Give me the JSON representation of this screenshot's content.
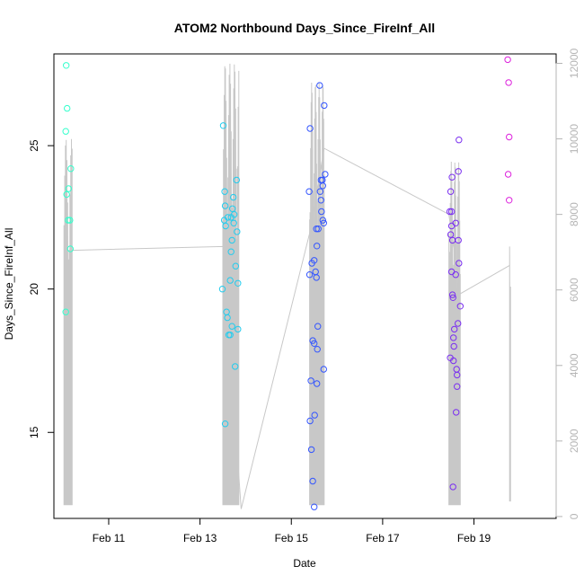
{
  "chart_data": {
    "type": "scatter",
    "title": "ATOM2 Northbound Days_Since_FireInf_All",
    "xlabel": "Date",
    "ylabel": "Days_Since_FireInf_All",
    "x_unit": "day of February",
    "x_ticks": [
      {
        "value": 11,
        "label": "Feb 11"
      },
      {
        "value": 13,
        "label": "Feb 13"
      },
      {
        "value": 15,
        "label": "Feb 15"
      },
      {
        "value": 17,
        "label": "Feb 17"
      },
      {
        "value": 19,
        "label": "Feb 19"
      }
    ],
    "xlim": [
      9.8,
      20.8
    ],
    "ylim": [
      12.0,
      28.2
    ],
    "y_ticks": [
      15,
      20,
      25
    ],
    "y2lim": [
      -50,
      12250
    ],
    "y2_ticks": [
      0,
      2000,
      4000,
      6000,
      8000,
      10000,
      12000
    ],
    "y2_line_color": "#c8c8c8",
    "grid": false,
    "legend": "none",
    "points": [
      {
        "x": 10.07,
        "y": 27.8,
        "color": "#33ffcc"
      },
      {
        "x": 10.09,
        "y": 26.3,
        "color": "#33ffcc"
      },
      {
        "x": 10.06,
        "y": 25.5,
        "color": "#33ffcc"
      },
      {
        "x": 10.17,
        "y": 24.2,
        "color": "#33ffcc"
      },
      {
        "x": 10.12,
        "y": 23.5,
        "color": "#33ffcc"
      },
      {
        "x": 10.08,
        "y": 23.3,
        "color": "#33ffcc"
      },
      {
        "x": 10.11,
        "y": 22.4,
        "color": "#33ffcc"
      },
      {
        "x": 10.15,
        "y": 22.4,
        "color": "#33ffcc"
      },
      {
        "x": 10.16,
        "y": 21.4,
        "color": "#33ffcc"
      },
      {
        "x": 10.06,
        "y": 19.2,
        "color": "#33ffcc"
      },
      {
        "x": 13.51,
        "y": 25.7,
        "color": "#22ccee"
      },
      {
        "x": 13.54,
        "y": 23.4,
        "color": "#22ccee"
      },
      {
        "x": 13.73,
        "y": 23.2,
        "color": "#22ccee"
      },
      {
        "x": 13.8,
        "y": 23.8,
        "color": "#22ccee"
      },
      {
        "x": 13.55,
        "y": 22.9,
        "color": "#22ccee"
      },
      {
        "x": 13.71,
        "y": 22.8,
        "color": "#22ccee"
      },
      {
        "x": 13.75,
        "y": 22.6,
        "color": "#22ccee"
      },
      {
        "x": 13.61,
        "y": 22.5,
        "color": "#22ccee"
      },
      {
        "x": 13.68,
        "y": 22.5,
        "color": "#22ccee"
      },
      {
        "x": 13.53,
        "y": 22.4,
        "color": "#22ccee"
      },
      {
        "x": 13.74,
        "y": 22.3,
        "color": "#22ccee"
      },
      {
        "x": 13.56,
        "y": 22.2,
        "color": "#22ccee"
      },
      {
        "x": 13.81,
        "y": 22.0,
        "color": "#22ccee"
      },
      {
        "x": 13.7,
        "y": 21.7,
        "color": "#22ccee"
      },
      {
        "x": 13.68,
        "y": 21.3,
        "color": "#22ccee"
      },
      {
        "x": 13.78,
        "y": 20.8,
        "color": "#22ccee"
      },
      {
        "x": 13.66,
        "y": 20.3,
        "color": "#22ccee"
      },
      {
        "x": 13.83,
        "y": 20.2,
        "color": "#22ccee"
      },
      {
        "x": 13.49,
        "y": 20.0,
        "color": "#22ccee"
      },
      {
        "x": 13.58,
        "y": 19.2,
        "color": "#22ccee"
      },
      {
        "x": 13.6,
        "y": 19.0,
        "color": "#22ccee"
      },
      {
        "x": 13.7,
        "y": 18.7,
        "color": "#22ccee"
      },
      {
        "x": 13.83,
        "y": 18.6,
        "color": "#22ccee"
      },
      {
        "x": 13.63,
        "y": 18.4,
        "color": "#22ccee"
      },
      {
        "x": 13.66,
        "y": 18.4,
        "color": "#22ccee"
      },
      {
        "x": 13.77,
        "y": 17.3,
        "color": "#22ccee"
      },
      {
        "x": 13.55,
        "y": 15.3,
        "color": "#22ccee"
      },
      {
        "x": 15.62,
        "y": 27.1,
        "color": "#3355ff"
      },
      {
        "x": 15.72,
        "y": 26.4,
        "color": "#3355ff"
      },
      {
        "x": 15.41,
        "y": 25.6,
        "color": "#3355ff"
      },
      {
        "x": 15.74,
        "y": 24.0,
        "color": "#3355ff"
      },
      {
        "x": 15.65,
        "y": 23.8,
        "color": "#3355ff"
      },
      {
        "x": 15.68,
        "y": 23.8,
        "color": "#3355ff"
      },
      {
        "x": 15.69,
        "y": 23.6,
        "color": "#3355ff"
      },
      {
        "x": 15.39,
        "y": 23.4,
        "color": "#3355ff"
      },
      {
        "x": 15.63,
        "y": 23.4,
        "color": "#3355ff"
      },
      {
        "x": 15.65,
        "y": 23.1,
        "color": "#3355ff"
      },
      {
        "x": 15.66,
        "y": 22.7,
        "color": "#3355ff"
      },
      {
        "x": 15.69,
        "y": 22.4,
        "color": "#3355ff"
      },
      {
        "x": 15.71,
        "y": 22.3,
        "color": "#3355ff"
      },
      {
        "x": 15.55,
        "y": 22.1,
        "color": "#3355ff"
      },
      {
        "x": 15.59,
        "y": 22.1,
        "color": "#3355ff"
      },
      {
        "x": 15.56,
        "y": 21.5,
        "color": "#3355ff"
      },
      {
        "x": 15.5,
        "y": 21.0,
        "color": "#3355ff"
      },
      {
        "x": 15.45,
        "y": 20.9,
        "color": "#3355ff"
      },
      {
        "x": 15.53,
        "y": 20.6,
        "color": "#3355ff"
      },
      {
        "x": 15.4,
        "y": 20.5,
        "color": "#3355ff"
      },
      {
        "x": 15.55,
        "y": 20.4,
        "color": "#3355ff"
      },
      {
        "x": 15.58,
        "y": 18.7,
        "color": "#3355ff"
      },
      {
        "x": 15.47,
        "y": 18.2,
        "color": "#3355ff"
      },
      {
        "x": 15.5,
        "y": 18.1,
        "color": "#3355ff"
      },
      {
        "x": 15.57,
        "y": 17.9,
        "color": "#3355ff"
      },
      {
        "x": 15.71,
        "y": 17.2,
        "color": "#3355ff"
      },
      {
        "x": 15.43,
        "y": 16.8,
        "color": "#3355ff"
      },
      {
        "x": 15.56,
        "y": 16.7,
        "color": "#3355ff"
      },
      {
        "x": 15.51,
        "y": 15.6,
        "color": "#3355ff"
      },
      {
        "x": 15.41,
        "y": 15.4,
        "color": "#3355ff"
      },
      {
        "x": 15.44,
        "y": 14.4,
        "color": "#3355ff"
      },
      {
        "x": 15.47,
        "y": 13.3,
        "color": "#3355ff"
      },
      {
        "x": 15.5,
        "y": 12.4,
        "color": "#3355ff"
      },
      {
        "x": 18.67,
        "y": 25.2,
        "color": "#7a2ef0"
      },
      {
        "x": 18.66,
        "y": 24.1,
        "color": "#7a2ef0"
      },
      {
        "x": 18.52,
        "y": 23.9,
        "color": "#7a2ef0"
      },
      {
        "x": 18.49,
        "y": 23.4,
        "color": "#7a2ef0"
      },
      {
        "x": 18.47,
        "y": 22.7,
        "color": "#7a2ef0"
      },
      {
        "x": 18.51,
        "y": 22.7,
        "color": "#7a2ef0"
      },
      {
        "x": 18.51,
        "y": 22.2,
        "color": "#7a2ef0"
      },
      {
        "x": 18.6,
        "y": 22.3,
        "color": "#7a2ef0"
      },
      {
        "x": 18.49,
        "y": 21.9,
        "color": "#7a2ef0"
      },
      {
        "x": 18.66,
        "y": 21.7,
        "color": "#7a2ef0"
      },
      {
        "x": 18.53,
        "y": 21.7,
        "color": "#7a2ef0"
      },
      {
        "x": 18.67,
        "y": 20.9,
        "color": "#7a2ef0"
      },
      {
        "x": 18.51,
        "y": 20.6,
        "color": "#7a2ef0"
      },
      {
        "x": 18.6,
        "y": 20.5,
        "color": "#7a2ef0"
      },
      {
        "x": 18.53,
        "y": 19.8,
        "color": "#7a2ef0"
      },
      {
        "x": 18.54,
        "y": 19.7,
        "color": "#7a2ef0"
      },
      {
        "x": 18.7,
        "y": 19.4,
        "color": "#7a2ef0"
      },
      {
        "x": 18.65,
        "y": 18.8,
        "color": "#7a2ef0"
      },
      {
        "x": 18.57,
        "y": 18.6,
        "color": "#7a2ef0"
      },
      {
        "x": 18.55,
        "y": 18.3,
        "color": "#7a2ef0"
      },
      {
        "x": 18.56,
        "y": 18.0,
        "color": "#7a2ef0"
      },
      {
        "x": 18.48,
        "y": 17.6,
        "color": "#7a2ef0"
      },
      {
        "x": 18.55,
        "y": 17.5,
        "color": "#7a2ef0"
      },
      {
        "x": 18.62,
        "y": 17.2,
        "color": "#7a2ef0"
      },
      {
        "x": 18.63,
        "y": 17.0,
        "color": "#7a2ef0"
      },
      {
        "x": 18.63,
        "y": 16.6,
        "color": "#7a2ef0"
      },
      {
        "x": 18.61,
        "y": 15.7,
        "color": "#7a2ef0"
      },
      {
        "x": 18.54,
        "y": 13.1,
        "color": "#7a2ef0"
      },
      {
        "x": 19.74,
        "y": 28.0,
        "color": "#dd22dd"
      },
      {
        "x": 19.76,
        "y": 27.2,
        "color": "#dd22dd"
      },
      {
        "x": 19.77,
        "y": 25.3,
        "color": "#dd22dd"
      },
      {
        "x": 19.75,
        "y": 24.0,
        "color": "#dd22dd"
      },
      {
        "x": 19.77,
        "y": 23.1,
        "color": "#dd22dd"
      }
    ],
    "y2_bursts": [
      {
        "x_start": 10.02,
        "x_end": 10.2,
        "low": 300,
        "high": 10000,
        "count": 12
      },
      {
        "x_start": 13.5,
        "x_end": 13.85,
        "low": 300,
        "high": 12000,
        "count": 26
      },
      {
        "x_start": 15.4,
        "x_end": 15.72,
        "low": 300,
        "high": 11500,
        "count": 30
      },
      {
        "x_start": 18.45,
        "x_end": 18.7,
        "low": 300,
        "high": 9400,
        "count": 24
      },
      {
        "x_start": 19.78,
        "x_end": 19.8,
        "low": 400,
        "high": 8000,
        "count": 2
      }
    ],
    "y2_line_path": [
      {
        "x": 10.2,
        "y": 7050
      },
      {
        "x": 13.5,
        "y": 7150
      },
      {
        "x": 13.9,
        "y": 200
      },
      {
        "x": 15.4,
        "y": 7500
      },
      {
        "x": 15.72,
        "y": 9750
      },
      {
        "x": 18.45,
        "y": 8000
      },
      {
        "x": 18.7,
        "y": 5900
      },
      {
        "x": 19.78,
        "y": 6650
      }
    ]
  }
}
